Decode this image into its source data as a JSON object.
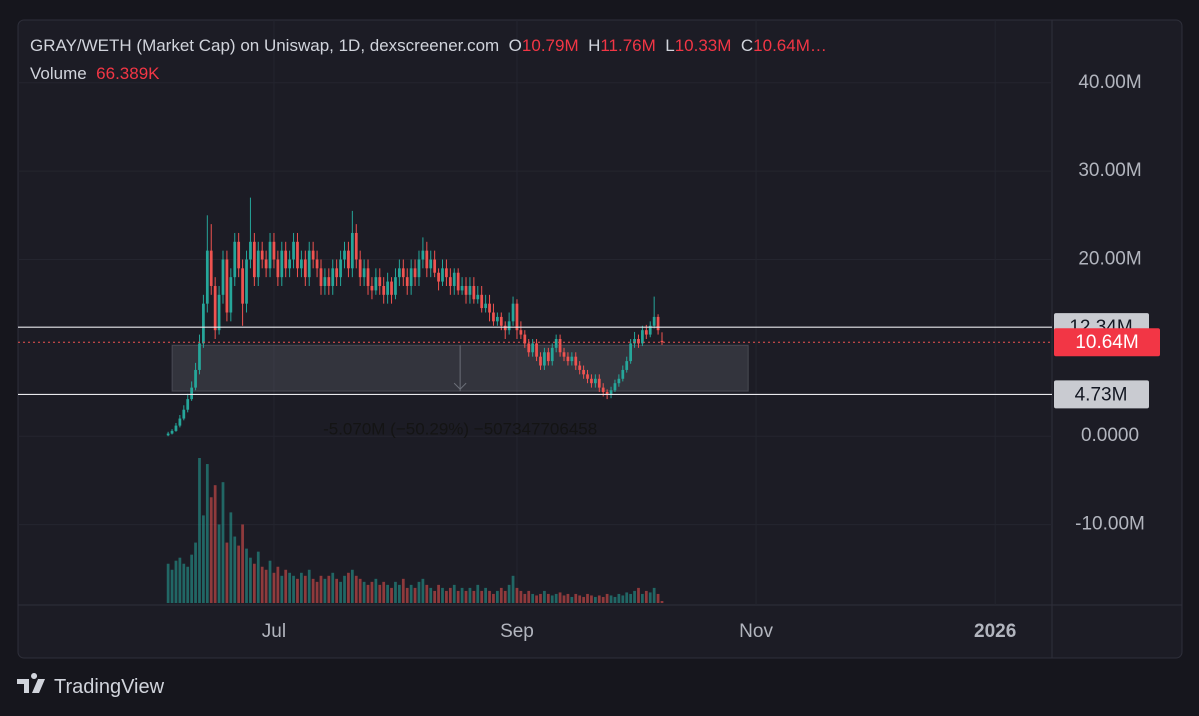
{
  "chart_data": {
    "type": "candlestick",
    "header": {
      "title": "GRAY/WETH (Market Cap) on Uniswap, 1D, dexscreener.com",
      "o_key": "O",
      "o": "10.79M",
      "h_key": "H",
      "h": "11.76M",
      "l_key": "L",
      "l": "10.33M",
      "c_key": "C",
      "c": "10.64M…"
    },
    "volume_label": "Volume",
    "volume_last": "66.389K",
    "x": [
      0,
      1,
      2,
      3,
      4,
      5,
      6,
      7,
      8,
      9,
      10,
      11,
      12,
      13,
      14,
      15,
      16,
      17,
      18,
      19,
      20,
      21,
      22,
      23,
      24,
      25,
      26,
      27,
      28,
      29,
      30,
      31,
      32,
      33,
      34,
      35,
      36,
      37,
      38,
      39,
      40,
      41,
      42,
      43,
      44,
      45,
      46,
      47,
      48,
      49,
      50,
      51,
      52,
      53,
      54,
      55,
      56,
      57,
      58,
      59,
      60,
      61,
      62,
      63,
      64,
      65,
      66,
      67,
      68,
      69,
      70,
      71,
      72,
      73,
      74,
      75,
      76,
      77,
      78,
      79,
      80,
      81,
      82,
      83,
      84,
      85,
      86,
      87,
      88,
      89,
      90,
      91,
      92,
      93,
      94,
      95,
      96,
      97,
      98,
      99,
      100,
      101,
      102,
      103,
      104,
      105,
      106,
      107,
      108,
      109,
      110,
      111,
      112,
      113,
      114,
      115,
      116,
      117,
      118,
      119,
      120,
      121,
      122,
      123,
      124,
      125,
      126
    ],
    "open": [
      0.1,
      0.3,
      0.6,
      1.2,
      2.0,
      3.0,
      4.2,
      5.5,
      7.5,
      10.5,
      15,
      21,
      17,
      12,
      16,
      20,
      14,
      18,
      22,
      19,
      15,
      20,
      22,
      18,
      21,
      20,
      19,
      22,
      20,
      18,
      21,
      19,
      20,
      22,
      19,
      20,
      18,
      21,
      20,
      19,
      17,
      18,
      17,
      19,
      18,
      20,
      21,
      19,
      23,
      20,
      18,
      19,
      17,
      16.5,
      18,
      17,
      16,
      17.5,
      16,
      18,
      19,
      18,
      17,
      19,
      18,
      20,
      21,
      19,
      20,
      18.5,
      17.5,
      19,
      18,
      17,
      18.5,
      16.5,
      17,
      16,
      17,
      15.5,
      16,
      14.5,
      15,
      14,
      13,
      13.5,
      12.5,
      12,
      13,
      15,
      12,
      11.5,
      10.5,
      9.5,
      10.5,
      9,
      8,
      9.5,
      8.5,
      10,
      11,
      9.5,
      9,
      8.5,
      9,
      8,
      7.5,
      7,
      6.5,
      6,
      6.5,
      5.5,
      5,
      4.7,
      5.2,
      6,
      6.5,
      7.5,
      8.5,
      10.5,
      11,
      10.5,
      12,
      11.5,
      12.5,
      13.5,
      10.79
    ],
    "high": [
      0.5,
      0.8,
      1.5,
      2.4,
      3.5,
      4.8,
      6.2,
      8.3,
      11.5,
      16,
      25,
      24,
      18,
      17,
      21,
      21,
      19,
      23,
      23,
      20,
      21,
      27,
      23,
      22,
      22,
      21,
      23,
      23,
      21,
      22,
      22,
      21,
      23,
      23,
      21,
      21,
      22,
      22,
      21,
      20,
      19,
      19,
      20,
      20,
      21,
      22,
      22,
      25.5,
      24,
      21,
      20,
      20,
      18,
      19,
      19,
      18,
      18.5,
      18,
      19,
      20,
      20,
      19,
      20,
      20,
      21,
      22.5,
      22,
      21,
      21,
      19,
      20,
      20,
      19,
      19,
      19,
      18,
      18,
      18,
      18,
      17,
      17,
      16,
      16,
      15,
      14,
      14,
      13,
      14,
      15.8,
      15.5,
      13,
      12,
      11,
      11,
      11,
      9.5,
      10,
      10,
      10.5,
      11.5,
      11.5,
      10,
      9.5,
      9.5,
      9.5,
      8.5,
      8,
      7.5,
      7,
      7,
      7,
      6,
      5.3,
      5.6,
      6.4,
      7,
      8,
      9,
      11,
      11.8,
      11.5,
      12.5,
      12.6,
      13,
      15.8,
      13.8,
      11.76
    ],
    "low": [
      0.0,
      0.2,
      0.5,
      1.0,
      1.8,
      2.7,
      4.0,
      5.2,
      7.0,
      10,
      14,
      16,
      11,
      11.5,
      15,
      13,
      13,
      17,
      18,
      12.5,
      14,
      19,
      17,
      17,
      19,
      18,
      18,
      19,
      17,
      17,
      18,
      18,
      19,
      18,
      18,
      17,
      17,
      19,
      18,
      16,
      16,
      16,
      16,
      17,
      17,
      19,
      18,
      18,
      19,
      17,
      17,
      16,
      15.5,
      16,
      16,
      15,
      15,
      15,
      15.5,
      17,
      17,
      16,
      16,
      17,
      17,
      19,
      18,
      18,
      18,
      16.5,
      17,
      17,
      16,
      16,
      16,
      16,
      15,
      15,
      15,
      15,
      14,
      14,
      13,
      12.5,
      12.5,
      12,
      11,
      11.5,
      12.5,
      11,
      11,
      10,
      9,
      9,
      8.5,
      7.5,
      7.5,
      8,
      8,
      9.5,
      9,
      8.5,
      8,
      8,
      7.5,
      7,
      6.5,
      6,
      5.5,
      5.5,
      5,
      4.5,
      4.2,
      4.3,
      5,
      5.6,
      6.2,
      7.2,
      8.2,
      10,
      10,
      10.2,
      11,
      11.2,
      12.2,
      11.5,
      10.33
    ],
    "close": [
      0.3,
      0.6,
      1.2,
      2.0,
      3.0,
      4.2,
      5.5,
      7.5,
      10.5,
      15,
      21,
      17,
      12,
      16,
      20,
      14,
      18,
      22,
      19,
      15,
      20,
      22,
      18,
      21,
      20,
      19,
      22,
      20,
      18,
      21,
      19,
      20,
      22,
      19,
      20,
      18,
      21,
      20,
      19,
      17,
      18,
      17,
      19,
      18,
      20,
      21,
      19,
      23,
      20,
      18,
      19,
      17,
      16.5,
      18,
      17,
      16,
      17.5,
      16,
      18,
      19,
      18,
      17,
      19,
      18,
      20,
      21,
      19,
      20,
      18.5,
      17.5,
      19,
      18,
      17,
      18.5,
      16.5,
      17,
      16,
      17,
      15.5,
      16,
      14.5,
      15,
      14,
      13,
      13.5,
      12.5,
      12,
      13,
      15,
      12,
      11.5,
      10.5,
      9.5,
      10.5,
      9,
      8,
      9.5,
      8.5,
      10,
      11,
      9.5,
      9,
      8.5,
      9,
      8,
      7.5,
      7,
      6.5,
      6,
      6.5,
      5.5,
      5,
      4.7,
      5.2,
      6,
      6.5,
      7.5,
      8.5,
      10.5,
      11,
      10.5,
      12,
      11.5,
      12.5,
      13.5,
      12,
      10.64
    ],
    "volume": [
      1300,
      1100,
      1400,
      1500,
      1300,
      1200,
      1600,
      2000,
      4800,
      2900,
      4600,
      3500,
      3900,
      2600,
      4000,
      2000,
      3000,
      2200,
      1900,
      2600,
      1800,
      1500,
      1300,
      1700,
      1200,
      1100,
      1400,
      1000,
      1200,
      900,
      1100,
      1000,
      900,
      800,
      1000,
      900,
      1100,
      800,
      700,
      900,
      800,
      900,
      1000,
      800,
      700,
      900,
      1000,
      1100,
      900,
      800,
      700,
      600,
      700,
      800,
      600,
      700,
      600,
      500,
      700,
      600,
      800,
      500,
      600,
      500,
      700,
      800,
      600,
      500,
      400,
      600,
      500,
      400,
      500,
      600,
      400,
      500,
      400,
      500,
      400,
      600,
      400,
      500,
      400,
      300,
      400,
      500,
      400,
      600,
      900,
      500,
      400,
      300,
      400,
      300,
      250,
      300,
      400,
      300,
      250,
      300,
      350,
      250,
      300,
      200,
      300,
      250,
      200,
      300,
      250,
      200,
      250,
      200,
      300,
      250,
      200,
      300,
      250,
      350,
      300,
      400,
      500,
      300,
      400,
      350,
      500,
      300,
      66.389
    ],
    "up_color": "#26a69a",
    "down_color": "#ef5350",
    "xlim": [
      -38.3,
      225.5
    ],
    "xticks": [
      {
        "value": 27,
        "label": "Jul"
      },
      {
        "value": 89,
        "label": "Sep"
      },
      {
        "value": 150,
        "label": "Nov"
      },
      {
        "value": 211,
        "label": "2026"
      }
    ],
    "ylim": [
      -19.1,
      47.1
    ],
    "yticks": [
      {
        "value": -10,
        "label": "-10.00M"
      },
      {
        "value": 0,
        "label": "0.0000"
      },
      {
        "value": 20,
        "label": "20.00M"
      },
      {
        "value": 30,
        "label": "30.00M"
      },
      {
        "value": 40,
        "label": "40.00M"
      }
    ],
    "grid": true,
    "levels": [
      {
        "value": 12.34,
        "label": "12.34M"
      },
      {
        "value": 4.73,
        "label": "4.73M"
      }
    ],
    "last_price": {
      "value": 10.64,
      "label": "10.64M"
    },
    "measure": {
      "x_from": 1,
      "x_to": 148,
      "from": 10.3,
      "to": 5.1,
      "label": "-5.070M (−50.29%) −507347706458"
    },
    "brand": "TradingView"
  }
}
